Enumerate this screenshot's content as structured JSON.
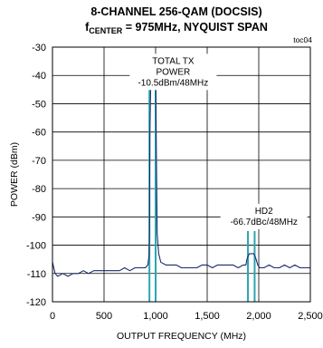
{
  "chart_data": {
    "type": "line",
    "title_line1": "8-CHANNEL 256-QAM (DOCSIS)",
    "title_line2_prefix": "f",
    "title_line2_sub": "CENTER",
    "title_line2_suffix": " = 975MHz, NYQUIST SPAN",
    "tag": "toc04",
    "xlabel": "OUTPUT FREQUENCY (MHz)",
    "ylabel": "POWER (dBm)",
    "xlim": [
      0,
      2500
    ],
    "ylim": [
      -120,
      -30
    ],
    "x_ticks": [
      0,
      500,
      1000,
      1500,
      2000,
      2500
    ],
    "x_tick_labels": [
      "0",
      "500",
      "1,000",
      "1,500",
      "2,000",
      "2,500"
    ],
    "y_ticks": [
      -30,
      -40,
      -50,
      -60,
      -70,
      -80,
      -90,
      -100,
      -110,
      -120
    ],
    "y_tick_labels": [
      "-30",
      "-40",
      "-50",
      "-60",
      "-70",
      "-80",
      "-90",
      "-100",
      "-110",
      "-120"
    ],
    "grid": true,
    "annotations": [
      {
        "lines": [
          "TOTAL TX",
          "POWER",
          "-10.5dBm/48MHz"
        ],
        "x": 1170,
        "y": -33
      },
      {
        "lines": [
          "HD2",
          "-66.7dBc/48MHz"
        ],
        "x": 2050,
        "y": -86
      }
    ],
    "markers": [
      {
        "x": 940,
        "y": -35
      },
      {
        "x": 1000,
        "y": -35
      },
      {
        "x": 1895,
        "y": -95
      },
      {
        "x": 1960,
        "y": -95
      }
    ],
    "series": [
      {
        "x": [
          0,
          25,
          50,
          100,
          150,
          200,
          250,
          300,
          350,
          400,
          450,
          500,
          550,
          600,
          650,
          700,
          750,
          800,
          850,
          900,
          925,
          935,
          940,
          945,
          955,
          965,
          975,
          985,
          995,
          1000,
          1005,
          1015,
          1030,
          1050,
          1100,
          1150,
          1200,
          1250,
          1300,
          1350,
          1400,
          1450,
          1500,
          1550,
          1600,
          1650,
          1700,
          1750,
          1800,
          1850,
          1875,
          1885,
          1895,
          1910,
          1930,
          1950,
          1965,
          1975,
          1990,
          2010,
          2050,
          2100,
          2150,
          2200,
          2250,
          2300,
          2350,
          2400,
          2450,
          2500
        ],
        "y": [
          -106,
          -110,
          -111,
          -110,
          -111,
          -110,
          -110,
          -109,
          -110,
          -109,
          -109,
          -109,
          -109,
          -109,
          -109,
          -108,
          -109,
          -108,
          -108,
          -108,
          -107,
          -104,
          -96,
          -60,
          -37,
          -36.5,
          -36,
          -36.5,
          -37,
          -38,
          -60,
          -96,
          -103,
          -106,
          -107,
          -107,
          -107,
          -108,
          -108,
          -108,
          -108,
          -107,
          -107,
          -108,
          -107,
          -107,
          -107,
          -107,
          -108,
          -107,
          -107,
          -105,
          -104,
          -103,
          -103,
          -103,
          -104,
          -105,
          -107,
          -108,
          -108,
          -107,
          -108,
          -108,
          -107,
          -108,
          -107,
          -108,
          -108,
          -108
        ]
      }
    ],
    "colors": {
      "trace": "#1a2a6e",
      "marker": "#2aa7b0",
      "grid": "#000000"
    }
  }
}
